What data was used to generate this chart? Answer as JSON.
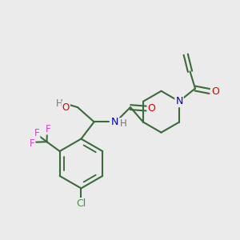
{
  "bg_color": "#ebebeb",
  "bond_color": "#3a6b3a",
  "bond_width": 1.5,
  "atom_colors": {
    "O": "#dd0000",
    "N": "#0000cc",
    "F": "#cc44cc",
    "Cl": "#22aa22",
    "H": "#777777",
    "C": "#3a6b3a"
  },
  "figsize": [
    3.0,
    3.0
  ],
  "dpi": 100
}
